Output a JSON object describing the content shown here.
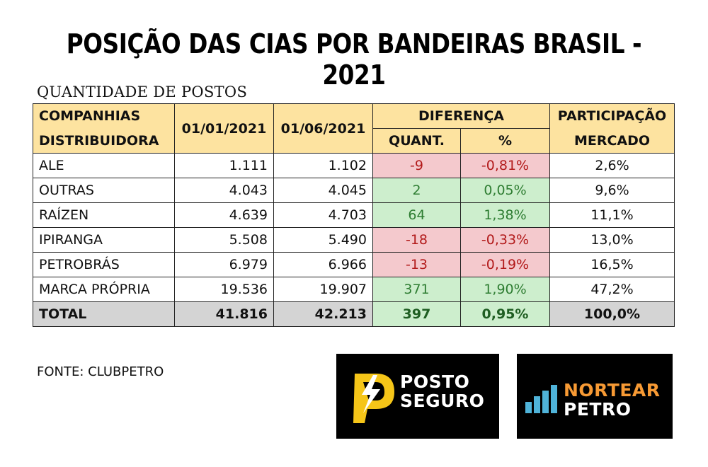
{
  "title": "POSIÇÃO DAS CIAS POR BANDEIRAS BRASIL - 2021",
  "subtitle": "QUANTIDADE DE POSTOS",
  "table": {
    "headers": {
      "companhias_line1": "COMPANHIAS",
      "companhias_line2": "DISTRIBUIDORA",
      "date1": "01/01/2021",
      "date2": "01/06/2021",
      "diferenca": "DIFERENÇA",
      "quant": "QUANT.",
      "pct": "%",
      "participacao_line1": "PARTICIPAÇÃO",
      "participacao_line2": "MERCADO"
    },
    "rows": [
      {
        "name": "ALE",
        "d1": "1.111",
        "d2": "1.102",
        "quant": "-9",
        "pct": "-0,81%",
        "part": "2,6%"
      },
      {
        "name": "OUTRAS",
        "d1": "4.043",
        "d2": "4.045",
        "quant": "2",
        "pct": "0,05%",
        "part": "9,6%"
      },
      {
        "name": "RAÍZEN",
        "d1": "4.639",
        "d2": "4.703",
        "quant": "64",
        "pct": "1,38%",
        "part": "11,1%"
      },
      {
        "name": "IPIRANGA",
        "d1": "5.508",
        "d2": "5.490",
        "quant": "-18",
        "pct": "-0,33%",
        "part": "13,0%"
      },
      {
        "name": "PETROBRÁS",
        "d1": "6.979",
        "d2": "6.966",
        "quant": "-13",
        "pct": "-0,19%",
        "part": "16,5%"
      },
      {
        "name": "MARCA PRÓPRIA",
        "d1": "19.536",
        "d2": "19.907",
        "quant": "371",
        "pct": "1,90%",
        "part": "47,2%"
      }
    ],
    "total": {
      "name": "TOTAL",
      "d1": "41.816",
      "d2": "42.213",
      "quant": "397",
      "pct": "0,95%",
      "part": "100,0%"
    }
  },
  "source": "FONTE: CLUBPETRO",
  "logos": {
    "posto_seguro": {
      "line1": "POSTO",
      "line2": "SEGURO"
    },
    "nortear_petro": {
      "line1": "NORTEAR",
      "line2": "PETRO"
    }
  },
  "colors": {
    "header_bg": "#fde3a0",
    "negative_bg": "#f4c9cd",
    "negative_text": "#b21a1a",
    "positive_bg": "#cdeecd",
    "positive_text": "#2e7d32",
    "total_bg": "#d4d4d4",
    "logo_orange": "#f79a34",
    "logo_yellow": "#f5c518",
    "logo_blue": "#4fb3d9"
  }
}
